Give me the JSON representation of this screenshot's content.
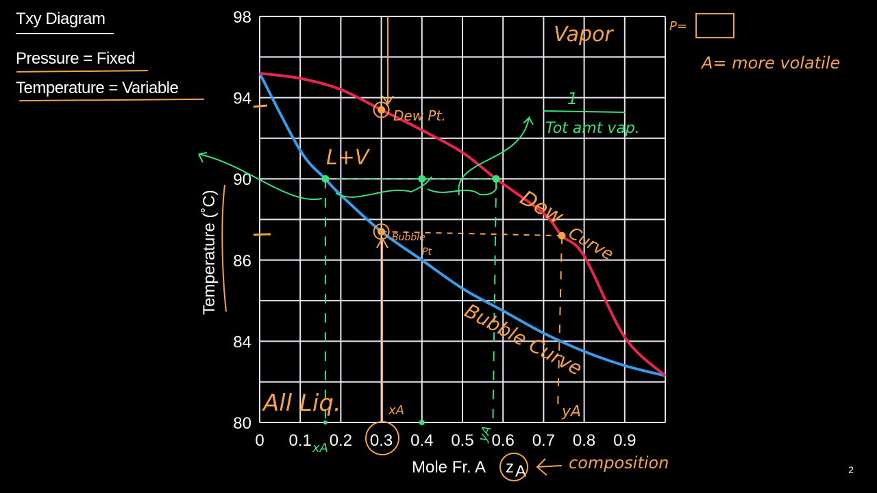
{
  "slide": {
    "title": "Txy Diagram",
    "pressure_line": "Pressure = Fixed",
    "temperature_line": "Temperature = Variable",
    "page_number": "2"
  },
  "colors": {
    "background": "#000000",
    "grid": "#e6e6f0",
    "bubble_curve": "#3a9be8",
    "dew_curve": "#e8264a",
    "orange_ink": "#f5a24a",
    "green_ink": "#3be07a"
  },
  "chart_data": {
    "type": "line",
    "title": "",
    "xlabel": "Mole Fr. A",
    "xlabel_symbol": "z",
    "xlabel_subscript": "A",
    "ylabel": "Temperature (˚C)",
    "xlim": [
      0,
      1
    ],
    "x_ticks": [
      "0",
      "0.1",
      "0.2",
      "0.3",
      "0.4",
      "0.5",
      "0.6",
      "0.7",
      "0.8",
      "0.9"
    ],
    "y_ticks": [
      "98",
      "94",
      "90",
      "86",
      "84",
      "80"
    ],
    "grid": true,
    "series": [
      {
        "key": "bubble",
        "color": "#3a9be8",
        "x": [
          0,
          0.1,
          0.162,
          0.2,
          0.3,
          0.4,
          0.5,
          0.6,
          0.7,
          0.8,
          0.9,
          1.0
        ],
        "y": [
          95.2,
          91.4,
          90,
          89.2,
          87.4,
          86.0,
          85.3,
          84.75,
          84.2,
          83.5,
          82.8,
          82.3
        ]
      },
      {
        "key": "dew",
        "color": "#e8264a",
        "x": [
          0,
          0.1,
          0.2,
          0.3,
          0.4,
          0.5,
          0.583,
          0.7,
          0.745,
          0.8,
          0.9,
          1.0
        ],
        "y": [
          95.2,
          94.95,
          94.4,
          93.4,
          92.4,
          91.3,
          90,
          88.3,
          87.2,
          86.2,
          84.1,
          82.3
        ]
      }
    ],
    "points": [
      {
        "x": 0.162,
        "y": 90,
        "color": "green"
      },
      {
        "x": 0.4,
        "y": 90,
        "color": "green"
      },
      {
        "x": 0.583,
        "y": 90,
        "color": "green"
      },
      {
        "x": 0.3,
        "y": 93.4,
        "color": "orange",
        "circled": true
      },
      {
        "x": 0.3,
        "y": 87.4,
        "color": "orange",
        "circled": true
      },
      {
        "x": 0.745,
        "y": 87.2,
        "color": "orange"
      }
    ],
    "annotations": {
      "vapor": "Vapor",
      "p_equals": "P=",
      "a_more_volatile": "A= more volatile",
      "fraction_numerator": "1",
      "tot_amt_vap": "Tot amt vap.",
      "dew_pt": "Dew Pt.",
      "l_plus_v": "L+V",
      "bubble_pt_1": "Bubble",
      "bubble_pt_2": "Pt",
      "dew_curve_1": "Dew",
      "dew_curve_2": "Curve",
      "bubble_curve": "Bubble Curve",
      "all_liq": "All Liq.",
      "xa_orange": "xA",
      "ya_orange": "yA",
      "xa_green": "xA",
      "ya_green": "yA",
      "composition": "composition"
    }
  }
}
